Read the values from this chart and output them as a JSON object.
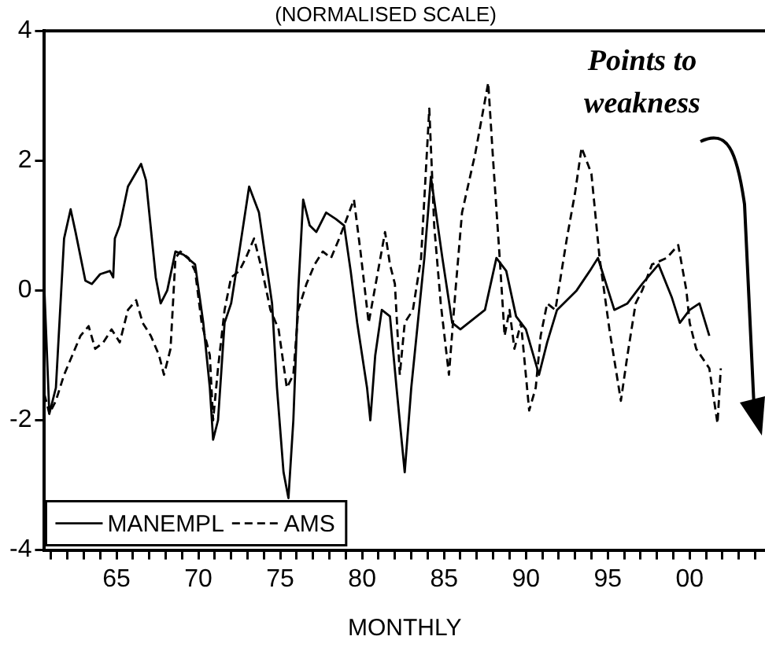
{
  "chart_data": {
    "type": "line",
    "title": "(NORMALISED SCALE)",
    "xlabel": "MONTHLY",
    "annotations": [
      "Points to weakness"
    ],
    "xlim": [
      1960.6,
      2004.6
    ],
    "ylim": [
      -4,
      4
    ],
    "yticks": [
      -4,
      -2,
      0,
      2,
      4
    ],
    "xticks": [
      {
        "value": 1961,
        "label": null
      },
      {
        "value": 1962,
        "label": null
      },
      {
        "value": 1963,
        "label": null
      },
      {
        "value": 1964,
        "label": null
      },
      {
        "value": 1965,
        "label": "65"
      },
      {
        "value": 1966,
        "label": null
      },
      {
        "value": 1967,
        "label": null
      },
      {
        "value": 1968,
        "label": null
      },
      {
        "value": 1969,
        "label": null
      },
      {
        "value": 1970,
        "label": "70"
      },
      {
        "value": 1971,
        "label": null
      },
      {
        "value": 1972,
        "label": null
      },
      {
        "value": 1973,
        "label": null
      },
      {
        "value": 1974,
        "label": null
      },
      {
        "value": 1975,
        "label": "75"
      },
      {
        "value": 1976,
        "label": null
      },
      {
        "value": 1977,
        "label": null
      },
      {
        "value": 1978,
        "label": null
      },
      {
        "value": 1979,
        "label": null
      },
      {
        "value": 1980,
        "label": "80"
      },
      {
        "value": 1981,
        "label": null
      },
      {
        "value": 1982,
        "label": null
      },
      {
        "value": 1983,
        "label": null
      },
      {
        "value": 1984,
        "label": null
      },
      {
        "value": 1985,
        "label": "85"
      },
      {
        "value": 1986,
        "label": null
      },
      {
        "value": 1987,
        "label": null
      },
      {
        "value": 1988,
        "label": null
      },
      {
        "value": 1989,
        "label": null
      },
      {
        "value": 1990,
        "label": "90"
      },
      {
        "value": 1991,
        "label": null
      },
      {
        "value": 1992,
        "label": null
      },
      {
        "value": 1993,
        "label": null
      },
      {
        "value": 1994,
        "label": null
      },
      {
        "value": 1995,
        "label": "95"
      },
      {
        "value": 1996,
        "label": null
      },
      {
        "value": 1997,
        "label": null
      },
      {
        "value": 1998,
        "label": null
      },
      {
        "value": 1999,
        "label": null
      },
      {
        "value": 2000,
        "label": "00"
      },
      {
        "value": 2001,
        "label": null
      },
      {
        "value": 2002,
        "label": null
      },
      {
        "value": 2003,
        "label": null
      },
      {
        "value": 2004,
        "label": null
      }
    ],
    "grid": false,
    "legend": "bottom left",
    "marker": "none",
    "series": [
      {
        "name": "MANEMPL",
        "color": "#000000",
        "line_style": "solid",
        "x": [
          1960.6,
          1960.9,
          1961.3,
          1961.8,
          1962.2,
          1962.5,
          1963.1,
          1963.5,
          1964.0,
          1964.6,
          1964.8,
          1964.9,
          1965.2,
          1965.7,
          1966.5,
          1966.8,
          1967.4,
          1967.7,
          1968.1,
          1968.6,
          1969.1,
          1969.8,
          1970.3,
          1970.7,
          1970.9,
          1971.2,
          1971.6,
          1972.0,
          1972.5,
          1973.1,
          1973.7,
          1974.1,
          1974.5,
          1974.8,
          1975.2,
          1975.5,
          1975.8,
          1976.1,
          1976.4,
          1976.8,
          1977.2,
          1977.8,
          1978.4,
          1978.9,
          1979.3,
          1979.7,
          1980.3,
          1980.5,
          1980.8,
          1981.2,
          1981.7,
          1982.1,
          1982.6,
          1983.0,
          1983.4,
          1983.8,
          1984.2,
          1984.9,
          1985.5,
          1986.0,
          1987.5,
          1988.2,
          1988.8,
          1989.4,
          1990.0,
          1990.8,
          1991.3,
          1991.9,
          1993.1,
          1993.9,
          1994.4,
          1995.4,
          1996.2,
          1997.1,
          1998.1,
          1998.9,
          1999.4,
          2000.0,
          2000.6,
          2001.2
        ],
        "values": [
          0.0,
          -1.9,
          -1.5,
          0.8,
          1.25,
          0.9,
          0.15,
          0.1,
          0.25,
          0.3,
          0.2,
          0.8,
          1.0,
          1.6,
          1.95,
          1.7,
          0.2,
          -0.2,
          0.0,
          0.6,
          0.55,
          0.4,
          -0.5,
          -1.5,
          -2.3,
          -2.0,
          -0.5,
          -0.2,
          0.6,
          1.6,
          1.2,
          0.5,
          -0.2,
          -1.5,
          -2.8,
          -3.2,
          -2.0,
          0.0,
          1.4,
          1.0,
          0.9,
          1.2,
          1.1,
          1.0,
          0.3,
          -0.5,
          -1.5,
          -2.0,
          -1.0,
          -0.3,
          -0.4,
          -1.5,
          -2.8,
          -1.5,
          -0.5,
          0.5,
          1.75,
          0.5,
          -0.5,
          -0.6,
          -0.3,
          0.5,
          0.3,
          -0.4,
          -0.6,
          -1.3,
          -0.8,
          -0.3,
          0.0,
          0.3,
          0.5,
          -0.3,
          -0.2,
          0.1,
          0.4,
          -0.1,
          -0.5,
          -0.3,
          -0.2,
          -0.7
        ]
      },
      {
        "name": "AMS",
        "color": "#000000",
        "line_style": "dashed",
        "x": [
          1960.6,
          1960.9,
          1961.3,
          1961.8,
          1962.3,
          1962.8,
          1963.3,
          1963.7,
          1964.2,
          1964.7,
          1965.2,
          1965.7,
          1966.2,
          1966.6,
          1967.1,
          1967.6,
          1967.9,
          1968.3,
          1968.6,
          1968.9,
          1969.4,
          1969.8,
          1970.2,
          1970.7,
          1970.9,
          1971.2,
          1971.6,
          1972.0,
          1972.5,
          1972.9,
          1973.4,
          1973.9,
          1974.4,
          1974.9,
          1975.4,
          1975.8,
          1976.1,
          1976.6,
          1977.1,
          1977.6,
          1978.1,
          1978.6,
          1979.5,
          1979.9,
          1980.4,
          1980.9,
          1981.4,
          1981.7,
          1982.0,
          1982.3,
          1982.6,
          1983.1,
          1983.6,
          1984.1,
          1984.4,
          1984.8,
          1985.3,
          1985.7,
          1986.1,
          1986.9,
          1987.7,
          1988.0,
          1988.4,
          1988.7,
          1989.0,
          1989.3,
          1989.7,
          1990.2,
          1990.6,
          1990.9,
          1991.3,
          1991.8,
          1992.5,
          1993.0,
          1993.4,
          1994.0,
          1994.5,
          1995.1,
          1995.8,
          1996.2,
          1996.7,
          1997.1,
          1997.7,
          1998.6,
          1999.3,
          1999.8,
          2000.0,
          2000.4,
          2001.2,
          2001.7,
          2001.9
        ],
        "values": [
          -1.6,
          -1.9,
          -1.7,
          -1.3,
          -1.0,
          -0.7,
          -0.55,
          -0.9,
          -0.8,
          -0.6,
          -0.8,
          -0.3,
          -0.15,
          -0.5,
          -0.7,
          -1.0,
          -1.3,
          -0.9,
          0.5,
          0.6,
          0.5,
          0.3,
          -0.5,
          -1.0,
          -2.0,
          -1.2,
          -0.3,
          0.2,
          0.3,
          0.5,
          0.8,
          0.3,
          -0.3,
          -0.6,
          -1.5,
          -1.3,
          -0.3,
          0.1,
          0.4,
          0.6,
          0.5,
          0.8,
          1.4,
          0.6,
          -0.5,
          0.2,
          0.9,
          0.4,
          0.1,
          -1.3,
          -0.5,
          -0.3,
          0.5,
          2.8,
          1.0,
          -0.2,
          -1.3,
          0.0,
          1.2,
          2.1,
          3.2,
          2.0,
          0.5,
          -0.7,
          -0.3,
          -0.9,
          -0.5,
          -1.85,
          -1.5,
          -0.7,
          -0.2,
          -0.3,
          0.8,
          1.5,
          2.2,
          1.8,
          0.5,
          -0.6,
          -1.7,
          -1.0,
          -0.2,
          0.0,
          0.4,
          0.5,
          0.7,
          0.0,
          -0.5,
          -0.9,
          -1.2,
          -2.05,
          -1.2
        ]
      }
    ]
  }
}
